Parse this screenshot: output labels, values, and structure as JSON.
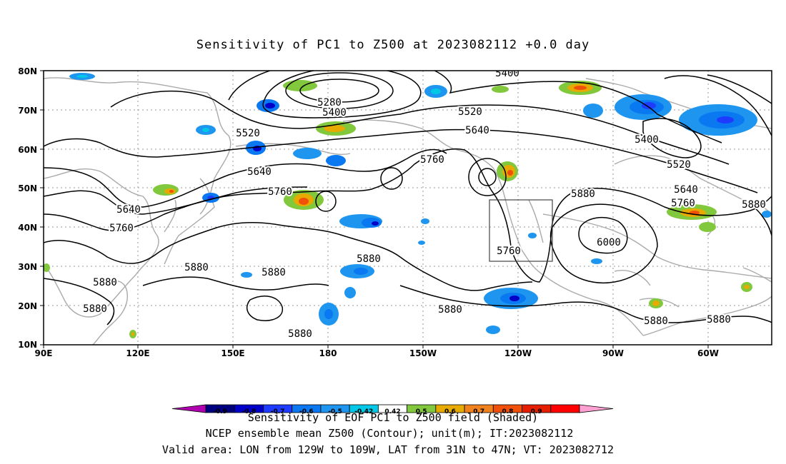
{
  "title": "Sensitivity of PC1 to Z500 at 2023082112 +0.0 day",
  "axes": {
    "lat_labels": [
      "80N",
      "70N",
      "60N",
      "50N",
      "40N",
      "30N",
      "20N",
      "10N"
    ],
    "lon_labels": [
      "90E",
      "120E",
      "150E",
      "180",
      "150W",
      "120W",
      "90W",
      "60W"
    ]
  },
  "contours": [
    {
      "value": "5280",
      "label": "5280"
    },
    {
      "value": "5400",
      "label": "5400"
    },
    {
      "value": "5520",
      "label": "5520"
    },
    {
      "value": "5640",
      "label": "5640"
    },
    {
      "value": "5760",
      "label": "5760"
    },
    {
      "value": "5880",
      "label": "5880"
    },
    {
      "value": "6000",
      "label": "6000"
    }
  ],
  "colorbar": {
    "ticks": [
      "-0.9",
      "-0.8",
      "-0.7",
      "-0.6",
      "-0.5",
      "-0.42",
      "0.42",
      "0.5",
      "0.6",
      "0.7",
      "0.8",
      "0.9"
    ],
    "colors": [
      "#b000b0",
      "#00007f",
      "#0000c8",
      "#1e3cff",
      "#0a78f0",
      "#1e96f0",
      "#00c8e6",
      "#ffffff",
      "#82c83c",
      "#e6aa00",
      "#f0821e",
      "#f0500a",
      "#e61e00",
      "#ff0000",
      "#ffa0d2"
    ]
  },
  "footer": {
    "line1": "Sensitivity of EOF PC1 to Z500 field (Shaded)",
    "line2": "NCEP ensemble mean Z500 (Contour); unit(m); IT:2023082112",
    "line3": "Valid area: LON from 129W to 109W, LAT from 31N to 47N; VT: 2023082712"
  }
}
